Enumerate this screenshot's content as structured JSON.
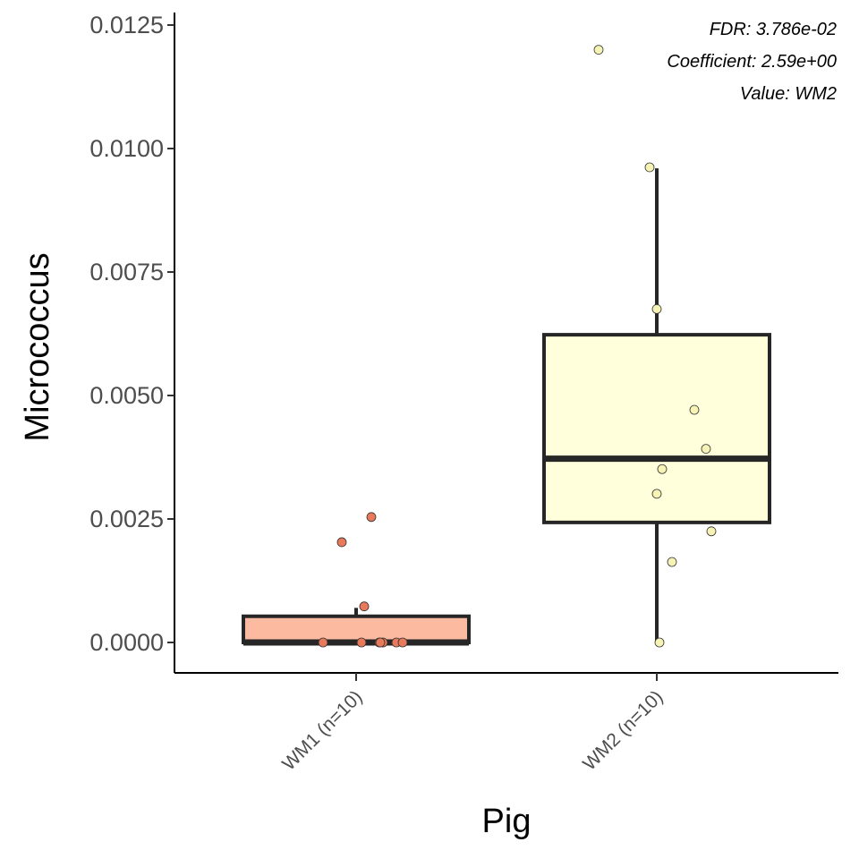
{
  "chart_data": {
    "type": "box",
    "xlabel": "Pig",
    "ylabel": "Micrococcus",
    "ylim": [
      -0.0006,
      0.0125
    ],
    "yticks": [
      0.0,
      0.0025,
      0.005,
      0.0075,
      0.01,
      0.0125
    ],
    "ytick_labels": [
      "0.0000",
      "0.0025",
      "0.0050",
      "0.0075",
      "0.0100",
      "0.0125"
    ],
    "categories": [
      "WM1 (n=10)",
      "WM2 (n=10)"
    ],
    "annotations": [
      "FDR: 3.786e-02",
      "Coefficient: 2.59e+00",
      "Value: WM2"
    ],
    "grid": false,
    "legend": "none",
    "groups": [
      {
        "category": "WM1 (n=10)",
        "fill": "#fcbba1",
        "point_fill": "#e8795a",
        "stats": {
          "min": 0.0,
          "q1": 0.0,
          "median": 0.0,
          "q3": 0.00053,
          "max": 0.0007
        },
        "points": [
          0.00254,
          0.00203,
          0.00073,
          0.0,
          0.0,
          0.0,
          0.0,
          0.0,
          0.0,
          0.0
        ]
      },
      {
        "category": "WM2 (n=10)",
        "fill": "#ffffdc",
        "point_fill": "#f7f3b4",
        "stats": {
          "min": 0.0,
          "q1": 0.00243,
          "median": 0.00372,
          "q3": 0.00623,
          "max": 0.0096
        },
        "points": [
          0.012,
          0.00962,
          0.00675,
          0.00471,
          0.00392,
          0.00351,
          0.00301,
          0.00225,
          0.00163,
          0.0
        ]
      }
    ]
  }
}
